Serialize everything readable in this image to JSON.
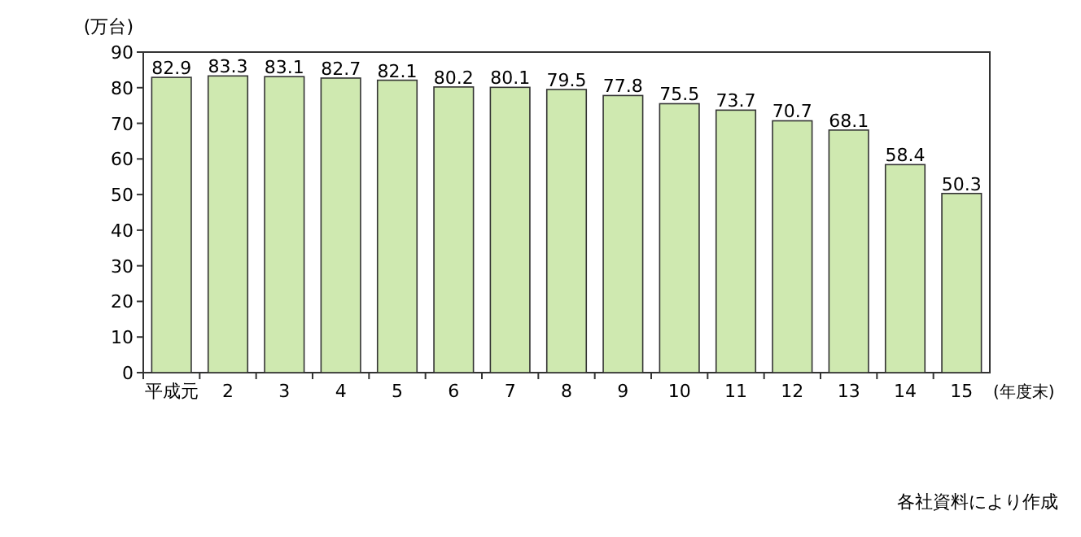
{
  "chart_data": {
    "type": "bar",
    "categories": [
      "平成元",
      "2",
      "3",
      "4",
      "5",
      "6",
      "7",
      "8",
      "9",
      "10",
      "11",
      "12",
      "13",
      "14",
      "15"
    ],
    "values": [
      82.9,
      83.3,
      83.1,
      82.7,
      82.1,
      80.2,
      80.1,
      79.5,
      77.8,
      75.5,
      73.7,
      70.7,
      68.1,
      58.4,
      50.3
    ],
    "color": "#cfe9b0",
    "ylim": [
      0,
      90
    ],
    "yticks": [
      0,
      10,
      20,
      30,
      40,
      50,
      60,
      70,
      80,
      90
    ],
    "ylabel": "(万台)",
    "xlabel": "(年度末)",
    "data_labels": true,
    "annotations": [
      "各社資料により作成"
    ]
  }
}
